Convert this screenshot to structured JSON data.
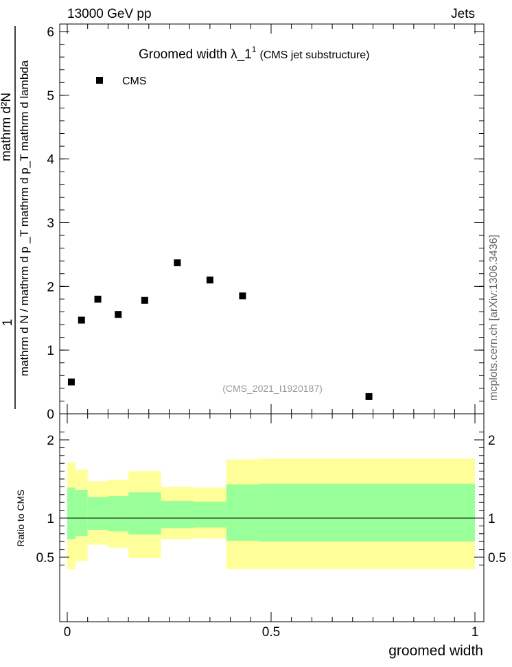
{
  "header": {
    "left": "13000 GeV pp",
    "right": "Jets"
  },
  "title": {
    "main": "Groomed width  λ_1",
    "sup": "1",
    "sub": "(CMS jet substructure)"
  },
  "watermark": "(CMS_2021_I1920187)",
  "side_label": "mcplots.cern.ch [arXiv:1306.3436]",
  "chart_data": [
    {
      "type": "scatter",
      "ylabel_numerator": "1",
      "ylabel_denominator": "mathrm d N / mathrm d p _T mathrm d p_T mathrm d lambda",
      "ylabel_top": "mathrm d²N",
      "xlim": [
        0,
        1
      ],
      "ylim": [
        0,
        6.2
      ],
      "yticks": [
        0,
        1,
        2,
        3,
        4,
        5,
        6
      ],
      "series": [
        {
          "name": "CMS",
          "color": "#000000",
          "points": [
            {
              "x": 0.01,
              "y": 0.5
            },
            {
              "x": 0.035,
              "y": 1.47
            },
            {
              "x": 0.075,
              "y": 1.8
            },
            {
              "x": 0.125,
              "y": 1.56
            },
            {
              "x": 0.19,
              "y": 1.78
            },
            {
              "x": 0.27,
              "y": 2.37
            },
            {
              "x": 0.35,
              "y": 2.1
            },
            {
              "x": 0.43,
              "y": 1.85
            },
            {
              "x": 0.74,
              "y": 0.27
            }
          ]
        }
      ]
    },
    {
      "type": "area",
      "ylabel": "Ratio to CMS",
      "xlabel": "groomed width",
      "xlim": [
        0,
        1
      ],
      "ylim": [
        0.35,
        2.25
      ],
      "yticks": [
        0.5,
        1,
        2
      ],
      "xticks": [
        0,
        0.5,
        1
      ],
      "reference_line": 1,
      "bands": [
        {
          "x0": 0.0,
          "x1": 0.02,
          "yellow": [
            0.35,
            1.71
          ],
          "green": [
            0.73,
            1.39
          ]
        },
        {
          "x0": 0.02,
          "x1": 0.05,
          "yellow": [
            0.45,
            1.62
          ],
          "green": [
            0.77,
            1.36
          ]
        },
        {
          "x0": 0.05,
          "x1": 0.1,
          "yellow": [
            0.66,
            1.47
          ],
          "green": [
            0.85,
            1.27
          ]
        },
        {
          "x0": 0.1,
          "x1": 0.15,
          "yellow": [
            0.62,
            1.49
          ],
          "green": [
            0.83,
            1.28
          ]
        },
        {
          "x0": 0.15,
          "x1": 0.23,
          "yellow": [
            0.49,
            1.6
          ],
          "green": [
            0.79,
            1.33
          ]
        },
        {
          "x0": 0.23,
          "x1": 0.31,
          "yellow": [
            0.73,
            1.4
          ],
          "green": [
            0.87,
            1.22
          ]
        },
        {
          "x0": 0.31,
          "x1": 0.39,
          "yellow": [
            0.74,
            1.39
          ],
          "green": [
            0.88,
            1.21
          ]
        },
        {
          "x0": 0.39,
          "x1": 0.47,
          "yellow": [
            0.35,
            1.75
          ],
          "green": [
            0.71,
            1.43
          ]
        },
        {
          "x0": 0.47,
          "x1": 1.0,
          "yellow": [
            0.35,
            1.76
          ],
          "green": [
            0.7,
            1.44
          ]
        }
      ],
      "colors": {
        "yellow": "#ffff99",
        "green": "#99ff99"
      }
    }
  ]
}
